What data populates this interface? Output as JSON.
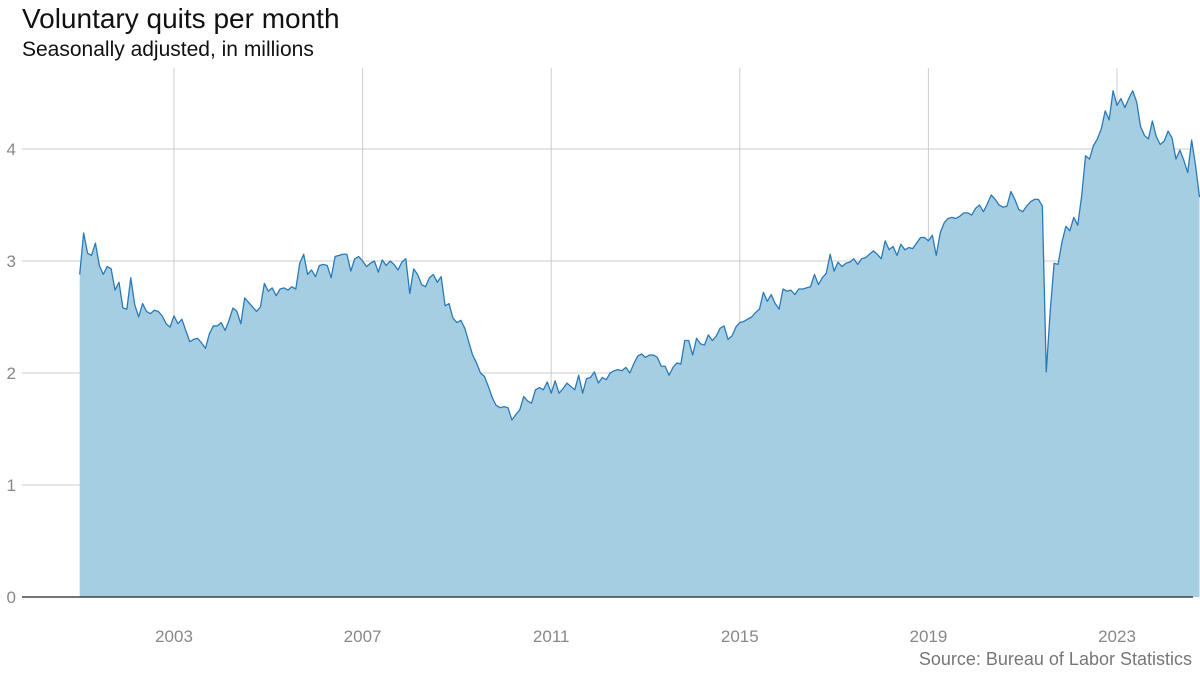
{
  "title": "Voluntary quits per month",
  "subtitle": "Seasonally adjusted, in millions",
  "source": "Source: Bureau of Labor Statistics",
  "colors": {
    "fill": "#a6cee3",
    "line": "#2a7ab8",
    "grid": "#cccccc",
    "axis": "#222222",
    "tick_text": "#888888"
  },
  "chart_data": {
    "type": "area",
    "title": "Voluntary quits per month",
    "subtitle": "Seasonally adjusted, in millions",
    "xlabel": "",
    "ylabel": "",
    "xlim": [
      2001.0,
      2023.917
    ],
    "ylim": [
      0,
      4.6
    ],
    "grid": true,
    "legend": "none",
    "x_ticks": [
      2003,
      2007,
      2011,
      2015,
      2019,
      2023
    ],
    "y_ticks": [
      0,
      1,
      2,
      3,
      4
    ],
    "x_start": 2001.0,
    "x_step_months": 1,
    "series": [
      {
        "values": [
          2.88,
          3.25,
          3.07,
          3.05,
          3.16,
          2.96,
          2.88,
          2.95,
          2.93,
          2.74,
          2.81,
          2.58,
          2.57,
          2.85,
          2.61,
          2.5,
          2.62,
          2.55,
          2.53,
          2.56,
          2.55,
          2.51,
          2.44,
          2.41,
          2.51,
          2.44,
          2.48,
          2.38,
          2.28,
          2.3,
          2.31,
          2.27,
          2.22,
          2.35,
          2.42,
          2.42,
          2.45,
          2.38,
          2.47,
          2.58,
          2.55,
          2.44,
          2.67,
          2.63,
          2.59,
          2.55,
          2.59,
          2.8,
          2.73,
          2.76,
          2.69,
          2.75,
          2.76,
          2.74,
          2.77,
          2.75,
          2.98,
          3.06,
          2.88,
          2.92,
          2.86,
          2.96,
          2.97,
          2.96,
          2.85,
          3.04,
          3.05,
          3.06,
          3.06,
          2.91,
          3.02,
          3.04,
          3.0,
          2.95,
          2.98,
          3.0,
          2.9,
          3.01,
          2.96,
          3.0,
          2.97,
          2.92,
          2.99,
          3.02,
          2.71,
          2.93,
          2.88,
          2.79,
          2.77,
          2.85,
          2.88,
          2.81,
          2.86,
          2.6,
          2.62,
          2.49,
          2.45,
          2.47,
          2.4,
          2.28,
          2.16,
          2.09,
          2.0,
          1.97,
          1.88,
          1.78,
          1.71,
          1.69,
          1.7,
          1.69,
          1.58,
          1.63,
          1.67,
          1.79,
          1.75,
          1.73,
          1.85,
          1.87,
          1.85,
          1.92,
          1.82,
          1.93,
          1.82,
          1.86,
          1.91,
          1.88,
          1.85,
          1.98,
          1.82,
          1.95,
          1.96,
          2.01,
          1.91,
          1.96,
          1.94,
          2.0,
          2.02,
          2.03,
          2.02,
          2.05,
          2.0,
          2.08,
          2.15,
          2.17,
          2.14,
          2.16,
          2.16,
          2.14,
          2.06,
          2.06,
          1.98,
          2.05,
          2.09,
          2.08,
          2.29,
          2.29,
          2.16,
          2.31,
          2.26,
          2.25,
          2.34,
          2.29,
          2.33,
          2.4,
          2.42,
          2.3,
          2.33,
          2.41,
          2.45,
          2.46,
          2.48,
          2.5,
          2.54,
          2.57,
          2.72,
          2.64,
          2.7,
          2.62,
          2.57,
          2.75,
          2.73,
          2.74,
          2.7,
          2.75,
          2.75,
          2.76,
          2.77,
          2.88,
          2.79,
          2.85,
          2.89,
          3.06,
          2.91,
          2.99,
          2.95,
          2.98,
          2.99,
          3.02,
          2.97,
          3.02,
          3.03,
          3.06,
          3.09,
          3.06,
          3.02,
          3.18,
          3.1,
          3.13,
          3.05,
          3.15,
          3.1,
          3.12,
          3.11,
          3.16,
          3.21,
          3.21,
          3.18,
          3.23,
          3.05,
          3.25,
          3.34,
          3.38,
          3.39,
          3.38,
          3.4,
          3.43,
          3.43,
          3.41,
          3.47,
          3.5,
          3.44,
          3.51,
          3.59,
          3.55,
          3.5,
          3.48,
          3.49,
          3.62,
          3.55,
          3.46,
          3.44,
          3.49,
          3.53,
          3.55,
          3.55,
          3.49,
          2.01,
          2.55,
          2.98,
          2.97,
          3.17,
          3.31,
          3.27,
          3.39,
          3.32,
          3.58,
          3.94,
          3.91,
          4.03,
          4.09,
          4.18,
          4.34,
          4.26,
          4.52,
          4.39,
          4.45,
          4.37,
          4.45,
          4.52,
          4.42,
          4.2,
          4.12,
          4.09,
          4.25,
          4.11,
          4.04,
          4.07,
          4.16,
          4.1,
          3.91,
          3.99,
          3.9,
          3.79,
          4.08,
          3.85,
          3.57
        ]
      }
    ]
  }
}
